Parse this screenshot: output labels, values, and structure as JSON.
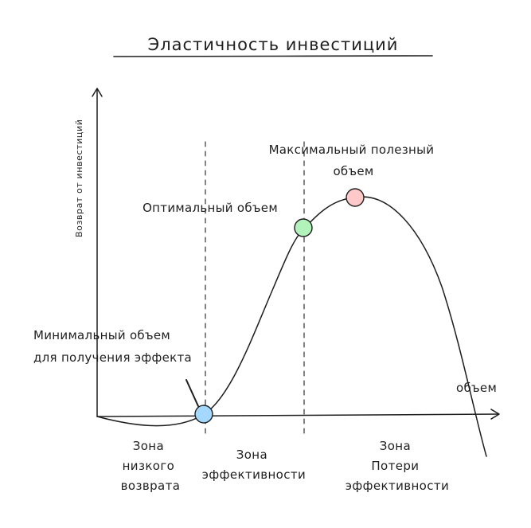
{
  "title": "Эластичность инвестиций",
  "axes": {
    "y_label": "Возврат от инвестиций",
    "x_label": "объем"
  },
  "points": {
    "min": {
      "lines": [
        "Минимальный объем",
        "для получения эффекта"
      ],
      "color": "#a5d8ff"
    },
    "optimal": {
      "lines": [
        "Оптимальный объем"
      ],
      "color": "#b2f2bb"
    },
    "max": {
      "lines": [
        "Максимальный полезный",
        "объем"
      ],
      "color": "#ffc9c9"
    }
  },
  "zones": {
    "low": {
      "lines": [
        "Зона",
        "низкого",
        "возврата"
      ]
    },
    "effective": {
      "lines": [
        "Зона",
        "эффективности"
      ]
    },
    "loss": {
      "lines": [
        "Зона",
        "Потери",
        "эффективности"
      ]
    }
  }
}
